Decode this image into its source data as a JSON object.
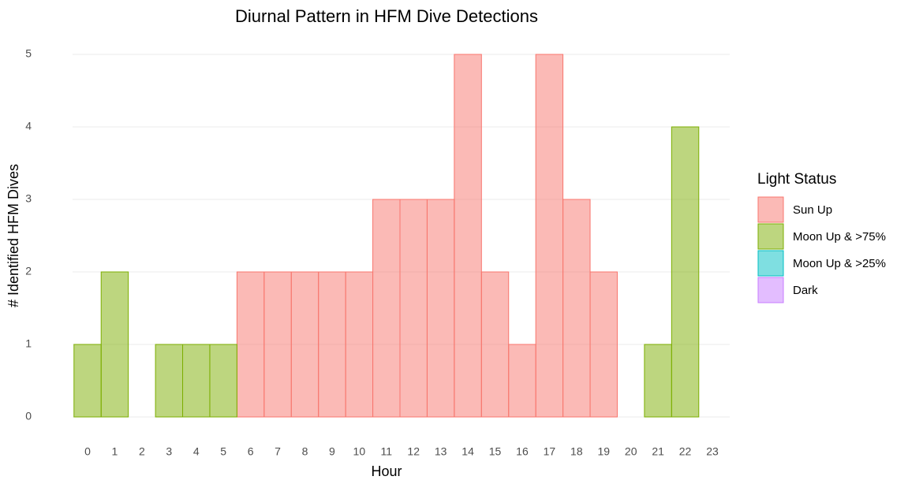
{
  "chart_data": {
    "type": "bar",
    "stacked": true,
    "title": "Diurnal Pattern in HFM Dive Detections",
    "x_label": "Hour",
    "y_label": "# Identified HFM Dives",
    "legend_title": "Light Status",
    "legend_position": "right",
    "categories": [
      "0",
      "1",
      "2",
      "3",
      "4",
      "5",
      "6",
      "7",
      "8",
      "9",
      "10",
      "11",
      "12",
      "13",
      "14",
      "15",
      "16",
      "17",
      "18",
      "19",
      "20",
      "21",
      "22",
      "23"
    ],
    "series": [
      {
        "name": "Sun Up",
        "color": "#F8766D",
        "values": [
          null,
          null,
          null,
          null,
          null,
          null,
          2,
          2,
          2,
          2,
          2,
          3,
          3,
          3,
          5,
          2,
          1,
          5,
          3,
          2,
          null,
          null,
          null,
          null
        ]
      },
      {
        "name": "Moon Up & >75%",
        "color": "#7CAE00",
        "values": [
          1,
          2,
          0,
          1,
          1,
          1,
          null,
          null,
          null,
          null,
          null,
          null,
          null,
          null,
          null,
          null,
          null,
          null,
          null,
          null,
          0,
          1,
          4,
          null
        ]
      },
      {
        "name": "Moon Up & >25%",
        "color": "#00BFC4",
        "values": [
          null,
          null,
          null,
          null,
          null,
          null,
          null,
          null,
          null,
          null,
          null,
          null,
          null,
          null,
          null,
          null,
          null,
          null,
          null,
          null,
          null,
          null,
          null,
          null
        ]
      },
      {
        "name": "Dark",
        "color": "#C77CFF",
        "values": [
          null,
          null,
          null,
          null,
          null,
          null,
          null,
          null,
          null,
          null,
          null,
          null,
          null,
          null,
          null,
          null,
          null,
          null,
          null,
          null,
          null,
          null,
          null,
          null
        ]
      }
    ],
    "ylim": [
      -0.25,
      5.25
    ],
    "yticks": [
      0,
      1,
      2,
      3,
      4,
      5
    ],
    "grid": true
  }
}
